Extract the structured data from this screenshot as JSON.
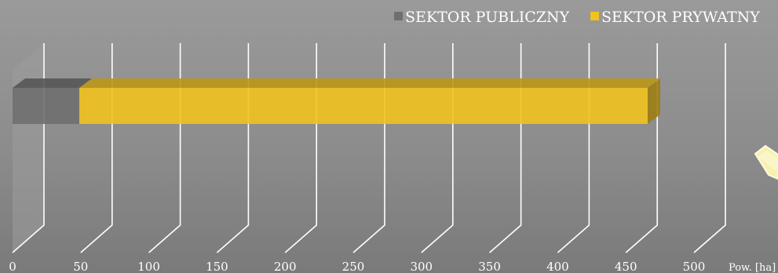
{
  "chart_data": {
    "type": "bar",
    "orientation": "horizontal",
    "stacked": true,
    "three_d": true,
    "categories": [
      ""
    ],
    "series": [
      {
        "name": "SEKTOR PUBLICZNY",
        "values": [
          49
        ],
        "color": "#6f6f6f"
      },
      {
        "name": "SEKTOR PRYWATNY",
        "values": [
          417
        ],
        "color": "#f2c21f"
      }
    ],
    "title": "",
    "xlabel": "Pow. [ha]",
    "ylabel": "",
    "xlim": [
      0,
      500
    ],
    "xticks": [
      0,
      50,
      100,
      150,
      200,
      250,
      300,
      350,
      400,
      450,
      500
    ],
    "grid": true,
    "legend_position": "top-right",
    "background": "#909090"
  }
}
